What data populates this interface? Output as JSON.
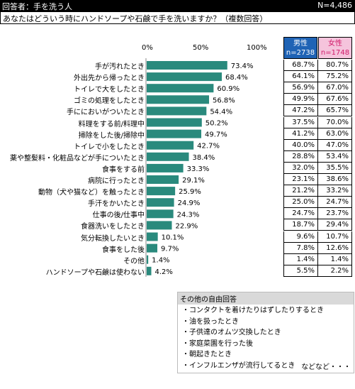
{
  "header": {
    "respondent": "回答者：手を洗う人",
    "n_total": "N=4,486",
    "question": "あなたはどういう時にハンドソープや石鹸で手を洗いますか？（複数回答）"
  },
  "scale": {
    "t0": "0%",
    "t50": "50%",
    "t100": "100%"
  },
  "table_headers": {
    "male": "男性",
    "male_n": "n=2738",
    "female": "女性",
    "female_n": "n=1748"
  },
  "colors": {
    "bar": "#2a8a7d",
    "male_header": "#1f63b5",
    "female_header": "#f5c4dc"
  },
  "chart_data": {
    "type": "bar",
    "orientation": "horizontal",
    "xlim": [
      0,
      100
    ],
    "unit": "%",
    "categories": [
      "手が汚れたとき",
      "外出先から帰ったとき",
      "トイレで大をしたとき",
      "ゴミの処理をしたとき",
      "手ににおいがついたとき",
      "料理をする前/料理中",
      "掃除をした後/掃除中",
      "トイレで小をしたとき",
      "薬や整髪料・化粧品などが手についたとき",
      "食事をする前",
      "病院に行ったとき",
      "動物（犬や猫など）を触ったとき",
      "手汗をかいたとき",
      "仕事の後/仕事中",
      "食器洗いをしたとき",
      "気分転換したいとき",
      "食事をした後",
      "その他",
      "ハンドソープや石鹸は使わない"
    ],
    "series": [
      {
        "values": [
          73.4,
          68.4,
          60.9,
          56.8,
          54.4,
          50.2,
          49.7,
          42.7,
          38.4,
          33.3,
          29.1,
          25.9,
          24.9,
          24.3,
          22.9,
          10.1,
          9.7,
          1.4,
          4.2
        ]
      },
      {
        "name": "男性",
        "values": [
          68.7,
          64.1,
          56.9,
          49.9,
          47.2,
          37.5,
          41.2,
          40.0,
          28.8,
          32.0,
          23.1,
          21.2,
          25.0,
          24.7,
          18.7,
          9.6,
          7.8,
          1.4,
          5.5
        ]
      },
      {
        "name": "女性",
        "values": [
          80.7,
          75.2,
          67.0,
          67.6,
          65.7,
          70.0,
          63.0,
          47.0,
          53.4,
          35.5,
          38.6,
          33.2,
          24.7,
          23.7,
          29.4,
          10.7,
          12.6,
          1.4,
          2.2
        ]
      }
    ],
    "bar_labels": [
      "73.4%",
      "68.4%",
      "60.9%",
      "56.8%",
      "54.4%",
      "50.2%",
      "49.7%",
      "42.7%",
      "38.4%",
      "33.3%",
      "29.1%",
      "25.9%",
      "24.9%",
      "24.3%",
      "22.9%",
      "10.1%",
      "9.7%",
      "1.4%",
      "4.2%"
    ],
    "male_labels": [
      "68.7%",
      "64.1%",
      "56.9%",
      "49.9%",
      "47.2%",
      "37.5%",
      "41.2%",
      "40.0%",
      "28.8%",
      "32.0%",
      "23.1%",
      "21.2%",
      "25.0%",
      "24.7%",
      "18.7%",
      "9.6%",
      "7.8%",
      "1.4%",
      "5.5%"
    ],
    "female_labels": [
      "80.7%",
      "75.2%",
      "67.0%",
      "67.6%",
      "65.7%",
      "70.0%",
      "63.0%",
      "47.0%",
      "53.4%",
      "35.5%",
      "38.6%",
      "33.2%",
      "24.7%",
      "23.7%",
      "29.4%",
      "10.7%",
      "12.6%",
      "1.4%",
      "2.2%"
    ]
  },
  "free_answers": {
    "title": "その他の自由回答",
    "items": [
      "・コンタクトを着けたりはずしたりするとき",
      "・油を扱ったとき",
      "・子供達のオムツ交換したとき",
      "・家庭菜園を行った後",
      "・朝起きたとき",
      "・インフルエンザが流行してるとき"
    ],
    "more": "などなど・・・"
  }
}
